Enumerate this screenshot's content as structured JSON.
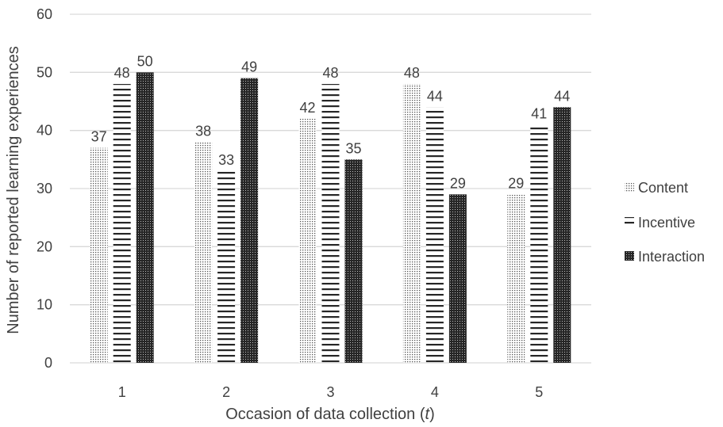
{
  "chart_data": {
    "type": "bar",
    "categories": [
      "1",
      "2",
      "3",
      "4",
      "5"
    ],
    "series": [
      {
        "name": "Content",
        "values": [
          37,
          38,
          42,
          48,
          29
        ],
        "pattern": "dots"
      },
      {
        "name": "Incentive",
        "values": [
          48,
          33,
          48,
          44,
          41
        ],
        "pattern": "horizontal-lines"
      },
      {
        "name": "Interaction",
        "values": [
          50,
          49,
          35,
          29,
          44
        ],
        "pattern": "dense-grid"
      }
    ],
    "xlabel_prefix": "Occasion of data collection (",
    "xlabel_var": "t",
    "xlabel_suffix": ")",
    "ylabel": "Number of reported learning experiences",
    "ylim": [
      0,
      60
    ],
    "yticks": [
      0,
      10,
      20,
      30,
      40,
      50,
      60
    ],
    "grid": true,
    "legend_position": "right",
    "data_labels": true,
    "colors": {
      "bar": "#262626",
      "grid": "#d9d9d9",
      "text": "#404040"
    }
  }
}
